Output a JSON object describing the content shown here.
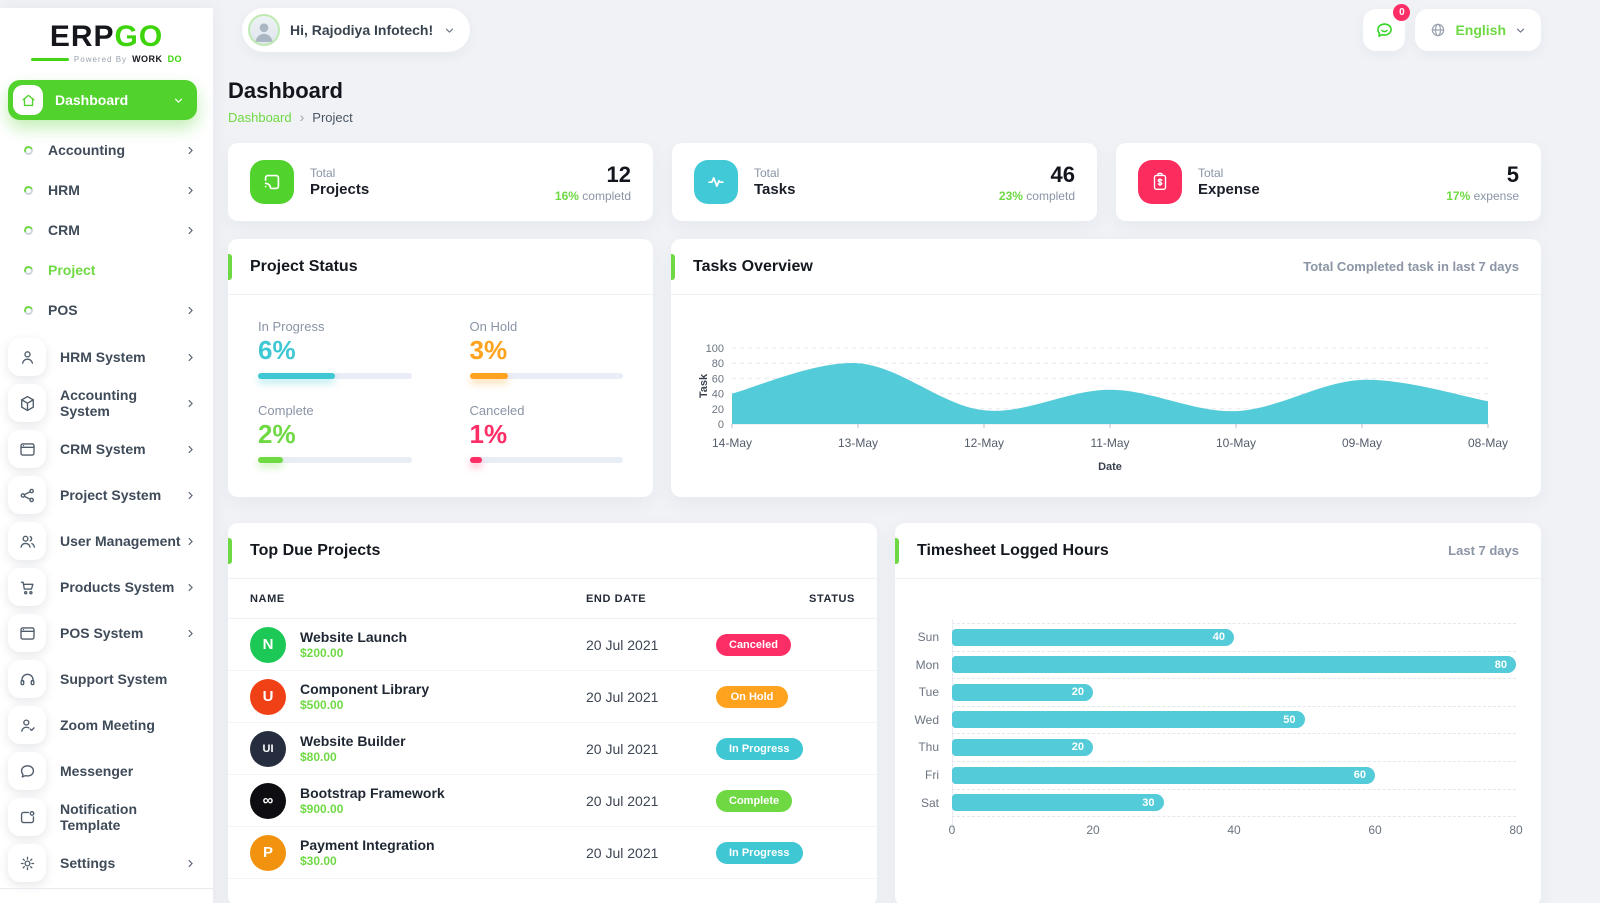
{
  "brand": {
    "logo_text_1": "ERP",
    "logo_text_2": "GO",
    "powered_by": "Powered By",
    "powered_brand": "WORK",
    "powered_brand_2": "DO"
  },
  "header": {
    "greeting": "Hi, Rajodiya Infotech!",
    "notification_badge": "0",
    "language_label": "English"
  },
  "sidebar": {
    "active_item": {
      "label": "Dashboard"
    },
    "module_items": [
      {
        "label": "Accounting",
        "chevron": true,
        "active": false
      },
      {
        "label": "HRM",
        "chevron": true,
        "active": false
      },
      {
        "label": "CRM",
        "chevron": true,
        "active": false
      },
      {
        "label": "Project",
        "chevron": false,
        "active": true
      },
      {
        "label": "POS",
        "chevron": true,
        "active": false
      }
    ],
    "system_items": [
      {
        "label": "HRM System",
        "icon": "person-icon",
        "chevron": true
      },
      {
        "label": "Accounting System",
        "icon": "cube-icon",
        "chevron": true
      },
      {
        "label": "CRM System",
        "icon": "window-icon",
        "chevron": true
      },
      {
        "label": "Project System",
        "icon": "share-nodes-icon",
        "chevron": true
      },
      {
        "label": "User Management",
        "icon": "users-icon",
        "chevron": true
      },
      {
        "label": "Products System",
        "icon": "cart-icon",
        "chevron": true
      },
      {
        "label": "POS System",
        "icon": "window-icon",
        "chevron": true
      },
      {
        "label": "Support System",
        "icon": "headset-icon",
        "chevron": false
      },
      {
        "label": "Zoom Meeting",
        "icon": "person-check-icon",
        "chevron": false
      },
      {
        "label": "Messenger",
        "icon": "chat-bubble-icon",
        "chevron": false
      },
      {
        "label": "Notification Template",
        "icon": "notification-icon",
        "chevron": false
      },
      {
        "label": "Settings",
        "icon": "gear-icon",
        "chevron": true
      }
    ]
  },
  "page": {
    "title": "Dashboard",
    "breadcrumb_home": "Dashboard",
    "breadcrumb_separator": "›",
    "breadcrumb_current": "Project"
  },
  "stats": [
    {
      "top": "Total",
      "label": "Projects",
      "value": "12",
      "percent": "16%",
      "suffix": "completd",
      "color": "#52d22d",
      "icon": "cast-icon"
    },
    {
      "top": "Total",
      "label": "Tasks",
      "value": "46",
      "percent": "23%",
      "suffix": "completd",
      "color": "#41c9d8",
      "icon": "pulse-icon"
    },
    {
      "top": "Total",
      "label": "Expense",
      "value": "5",
      "percent": "17%",
      "suffix": "expense",
      "color": "#fc2d5e",
      "icon": "receipt-icon"
    }
  ],
  "percent_color": "#6fd944",
  "project_status": {
    "title": "Project Status",
    "items": [
      {
        "label": "In Progress",
        "value": "6%",
        "color": "#3fc7d4",
        "fill_pct": 50
      },
      {
        "label": "On Hold",
        "value": "3%",
        "color": "#ffa21d",
        "fill_pct": 25
      },
      {
        "label": "Complete",
        "value": "2%",
        "color": "#6fd944",
        "fill_pct": 16
      },
      {
        "label": "Canceled",
        "value": "1%",
        "color": "#fd2e66",
        "fill_pct": 8
      }
    ]
  },
  "tasks_overview": {
    "title": "Tasks Overview",
    "subtitle": "Total Completed task in last 7 days"
  },
  "top_due_projects": {
    "title": "Top Due Projects",
    "columns": [
      "NAME",
      "END DATE",
      "STATUS"
    ],
    "rows": [
      {
        "name": "Website Launch",
        "amount": "$200.00",
        "end_date": "20 Jul 2021",
        "status": "Canceled",
        "status_color": "#fd2e66",
        "logo_text": "N",
        "logo_bg": "#1dc956"
      },
      {
        "name": "Component Library",
        "amount": "$500.00",
        "end_date": "20 Jul 2021",
        "status": "On Hold",
        "status_color": "#ffa21d",
        "logo_text": "U",
        "logo_bg": "#f04116"
      },
      {
        "name": "Website Builder",
        "amount": "$80.00",
        "end_date": "20 Jul 2021",
        "status": "In Progress",
        "status_color": "#3fc7d4",
        "logo_text": "UI",
        "logo_bg": "#262d3f"
      },
      {
        "name": "Bootstrap Framework",
        "amount": "$900.00",
        "end_date": "20 Jul 2021",
        "status": "Complete",
        "status_color": "#6fd944",
        "logo_text": "∞",
        "logo_bg": "#0e0e12"
      },
      {
        "name": "Payment Integration",
        "amount": "$30.00",
        "end_date": "20 Jul 2021",
        "status": "In Progress",
        "status_color": "#3fc7d4",
        "logo_text": "P",
        "logo_bg": "#f2930f"
      }
    ]
  },
  "timesheet": {
    "title": "Timesheet Logged Hours",
    "subtitle": "Last 7 days"
  },
  "chart_data": [
    {
      "type": "area",
      "title": "Tasks Overview",
      "x": [
        "14-May",
        "13-May",
        "12-May",
        "11-May",
        "10-May",
        "09-May",
        "08-May"
      ],
      "values": [
        40,
        80,
        18,
        45,
        17,
        58,
        30
      ],
      "xlabel": "Date",
      "ylabel": "Task",
      "ylim": [
        0,
        100
      ],
      "yticks": [
        0,
        20,
        40,
        60,
        80,
        100
      ],
      "color": "#53cbd8",
      "grid": "dashed-horizontal",
      "legend": "none"
    },
    {
      "type": "bar",
      "orientation": "horizontal",
      "title": "Timesheet Logged Hours",
      "categories": [
        "Sun",
        "Mon",
        "Tue",
        "Wed",
        "Thu",
        "Fri",
        "Sat"
      ],
      "values": [
        40,
        80,
        20,
        50,
        20,
        60,
        30
      ],
      "xlim": [
        0,
        80
      ],
      "xticks": [
        0,
        20,
        40,
        60,
        80
      ],
      "color": "#53cbd8",
      "value_labels": true,
      "grid": "dashed-between-rows"
    }
  ]
}
